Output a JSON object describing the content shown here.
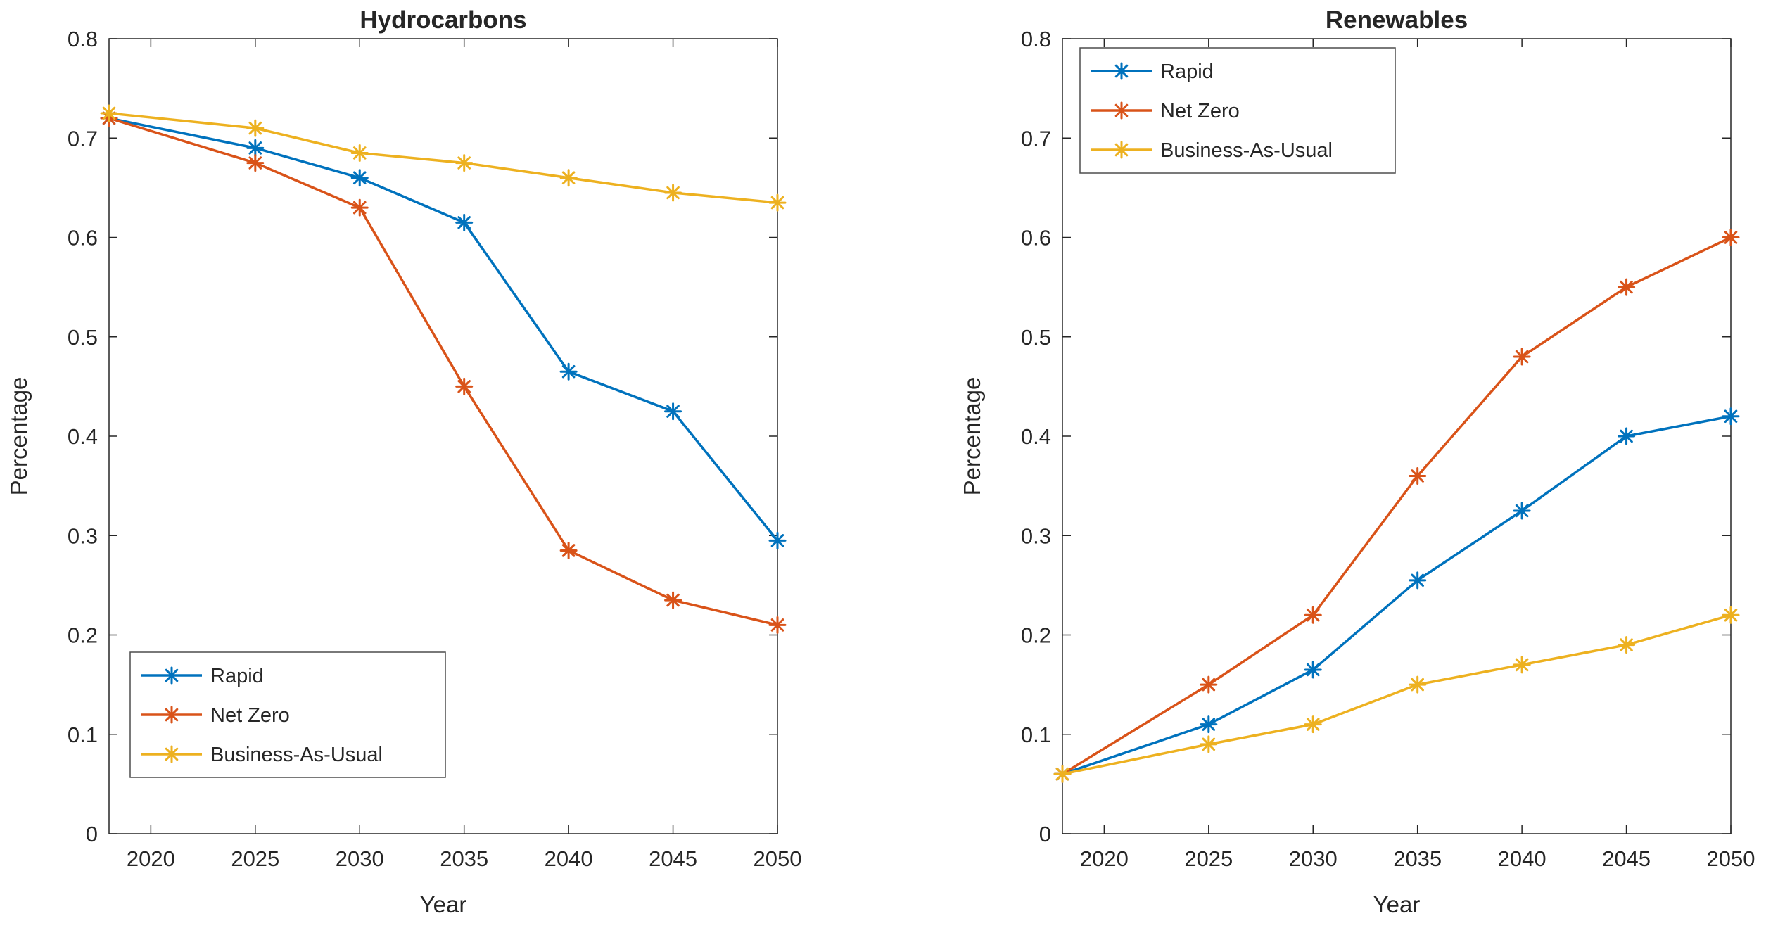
{
  "figure": {
    "background": "#ffffff",
    "style": "matlab-figure"
  },
  "palette": {
    "rapid": "#0072BD",
    "net_zero": "#D95319",
    "business_as_usual": "#EDB120",
    "axis": "#262626",
    "legend_border": "#4d4d4d"
  },
  "chart_data": [
    {
      "type": "line",
      "title": "Hydrocarbons",
      "xlabel": "Year",
      "ylabel": "Percentage",
      "xlim": [
        2018,
        2050
      ],
      "ylim": [
        0,
        0.8
      ],
      "xticks": [
        2020,
        2025,
        2030,
        2035,
        2040,
        2045,
        2050
      ],
      "yticks": [
        0,
        0.1,
        0.2,
        0.3,
        0.4,
        0.5,
        0.6,
        0.7,
        0.8
      ],
      "grid": false,
      "marker": "asterisk",
      "legend_position": "bottom-left",
      "x": [
        2018,
        2025,
        2030,
        2035,
        2040,
        2045,
        2050
      ],
      "series": [
        {
          "name": "Rapid",
          "color": "#0072BD",
          "values": [
            0.72,
            0.69,
            0.66,
            0.615,
            0.465,
            0.425,
            0.295
          ]
        },
        {
          "name": "Net Zero",
          "color": "#D95319",
          "values": [
            0.72,
            0.675,
            0.63,
            0.45,
            0.285,
            0.235,
            0.21
          ]
        },
        {
          "name": "Business-As-Usual",
          "color": "#EDB120",
          "values": [
            0.725,
            0.71,
            0.685,
            0.675,
            0.66,
            0.645,
            0.635
          ]
        }
      ]
    },
    {
      "type": "line",
      "title": "Renewables",
      "xlabel": "Year",
      "ylabel": "Percentage",
      "xlim": [
        2018,
        2050
      ],
      "ylim": [
        0,
        0.8
      ],
      "xticks": [
        2020,
        2025,
        2030,
        2035,
        2040,
        2045,
        2050
      ],
      "yticks": [
        0,
        0.1,
        0.2,
        0.3,
        0.4,
        0.5,
        0.6,
        0.7,
        0.8
      ],
      "grid": false,
      "marker": "asterisk",
      "legend_position": "top-left",
      "x": [
        2018,
        2025,
        2030,
        2035,
        2040,
        2045,
        2050
      ],
      "series": [
        {
          "name": "Rapid",
          "color": "#0072BD",
          "values": [
            0.06,
            0.11,
            0.165,
            0.255,
            0.325,
            0.4,
            0.42
          ]
        },
        {
          "name": "Net Zero",
          "color": "#D95319",
          "values": [
            0.06,
            0.15,
            0.22,
            0.36,
            0.48,
            0.55,
            0.6
          ]
        },
        {
          "name": "Business-As-Usual",
          "color": "#EDB120",
          "values": [
            0.06,
            0.09,
            0.11,
            0.15,
            0.17,
            0.19,
            0.22
          ]
        }
      ]
    }
  ]
}
